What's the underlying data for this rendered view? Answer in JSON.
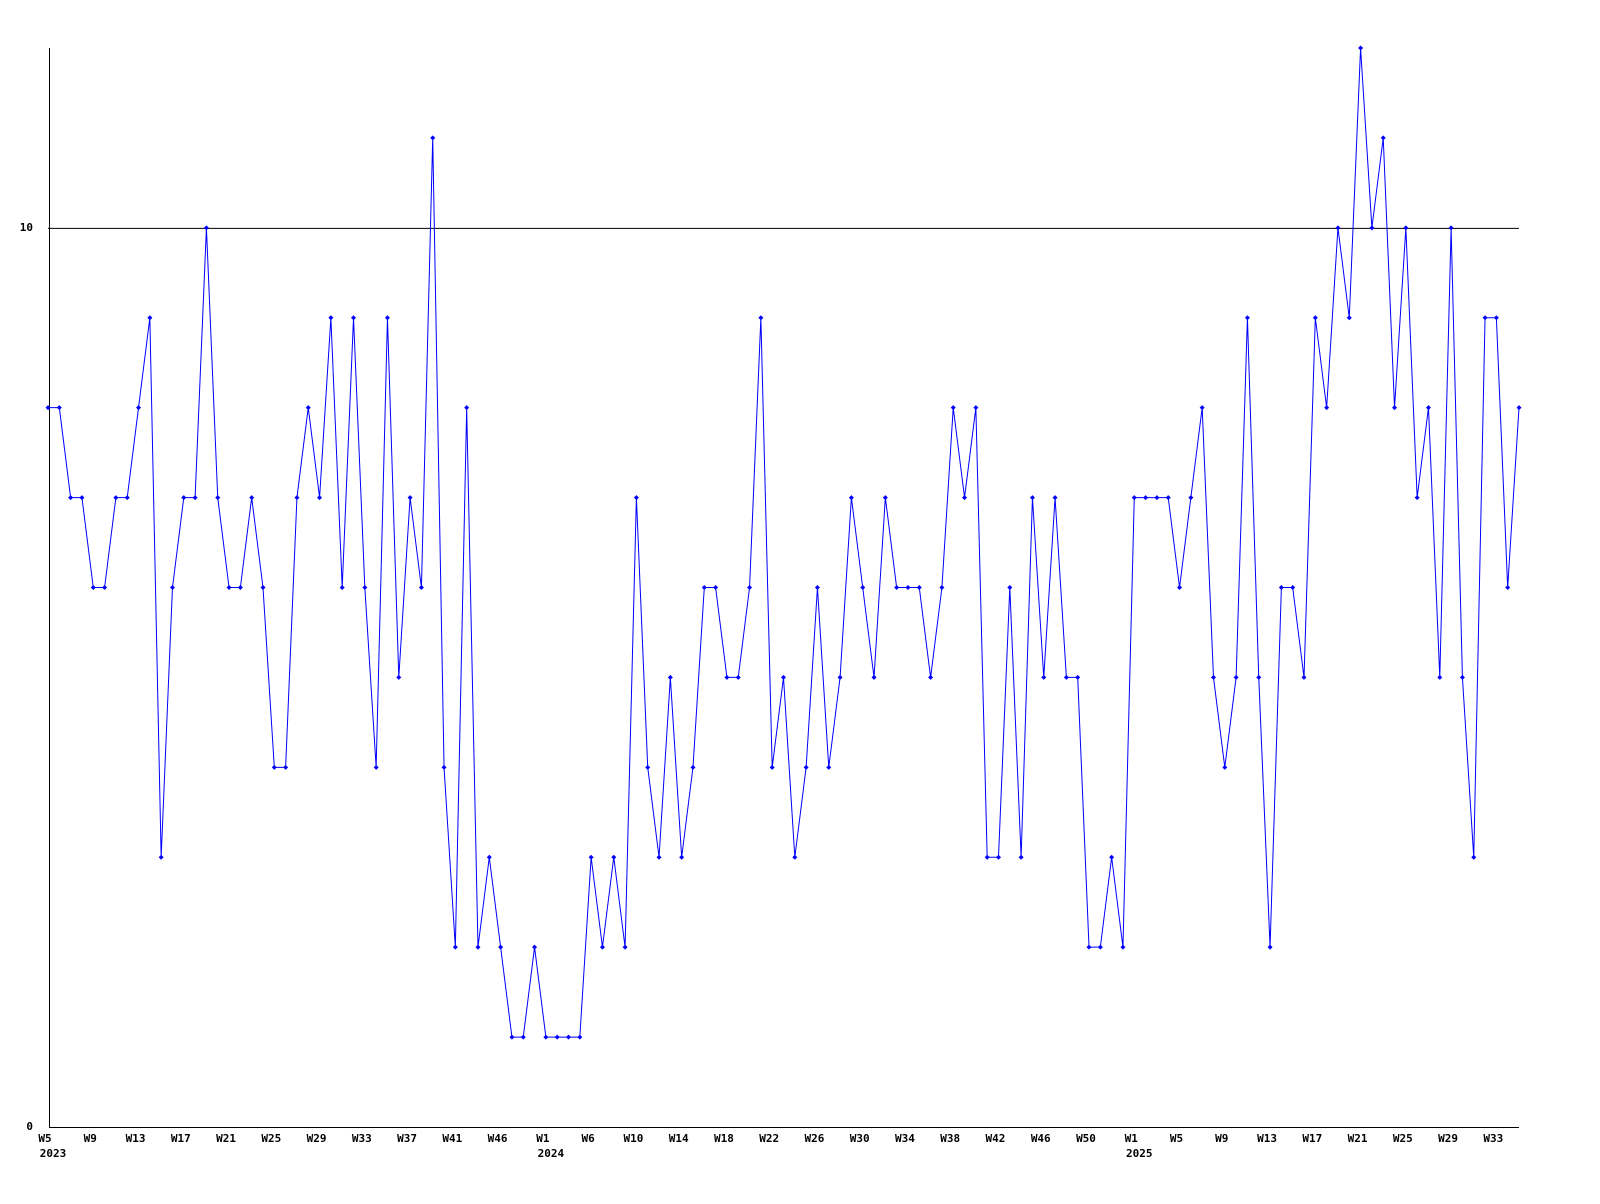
{
  "chart_data": {
    "type": "line",
    "color": "#0000ff",
    "categories": [
      "W5",
      null,
      null,
      null,
      "W9",
      null,
      null,
      null,
      "W13",
      null,
      null,
      null,
      "W17",
      null,
      null,
      null,
      "W21",
      null,
      null,
      null,
      "W25",
      null,
      null,
      null,
      "W29",
      null,
      null,
      null,
      "W33",
      null,
      null,
      null,
      "W37",
      null,
      null,
      null,
      "W41",
      null,
      null,
      null,
      "W46",
      null,
      null,
      null,
      "W1",
      null,
      null,
      null,
      "W6",
      null,
      null,
      null,
      "W10",
      null,
      null,
      null,
      "W14",
      null,
      null,
      null,
      "W18",
      null,
      null,
      null,
      "W22",
      null,
      null,
      null,
      "W26",
      null,
      null,
      null,
      "W30",
      null,
      null,
      null,
      "W34",
      null,
      null,
      null,
      "W38",
      null,
      null,
      null,
      "W42",
      null,
      null,
      null,
      "W46",
      null,
      null,
      null,
      "W50",
      null,
      null,
      null,
      "W1",
      null,
      null,
      null,
      "W5",
      null,
      null,
      null,
      "W9",
      null,
      null,
      null,
      "W13",
      null,
      null,
      null,
      "W17",
      null,
      null,
      null,
      "W21",
      null,
      null,
      null,
      "W25",
      null,
      null,
      null,
      "W29",
      null,
      null,
      null,
      "W33",
      null,
      null
    ],
    "category_years": [
      "2023",
      null,
      null,
      null,
      null,
      null,
      null,
      null,
      null,
      null,
      null,
      null,
      null,
      null,
      null,
      null,
      null,
      null,
      null,
      null,
      null,
      null,
      null,
      null,
      null,
      null,
      null,
      null,
      null,
      null,
      null,
      null,
      null,
      null,
      null,
      null,
      null,
      null,
      null,
      null,
      null,
      null,
      null,
      null,
      "2024",
      null,
      null,
      null,
      null,
      null,
      null,
      null,
      null,
      null,
      null,
      null,
      null,
      null,
      null,
      null,
      null,
      null,
      null,
      null,
      null,
      null,
      null,
      null,
      null,
      null,
      null,
      null,
      null,
      null,
      null,
      null,
      null,
      null,
      null,
      null,
      null,
      null,
      null,
      null,
      null,
      null,
      null,
      null,
      null,
      null,
      null,
      null,
      null,
      null,
      null,
      null,
      "2025",
      null,
      null,
      null,
      null,
      null,
      null,
      null,
      null,
      null,
      null,
      null,
      null,
      null,
      null,
      null,
      null,
      null,
      null,
      null,
      null,
      null,
      null,
      null,
      null,
      null,
      null,
      null,
      null,
      null,
      null,
      null,
      null,
      null,
      null
    ],
    "values": [
      8,
      8,
      7,
      7,
      6,
      6,
      7,
      7,
      8,
      9,
      3,
      6,
      7,
      7,
      10,
      7,
      6,
      6,
      7,
      6,
      4,
      4,
      7,
      8,
      7,
      9,
      6,
      9,
      6,
      4,
      9,
      5,
      7,
      6,
      11,
      4,
      2,
      8,
      2,
      3,
      2,
      1,
      1,
      2,
      1,
      1,
      1,
      1,
      3,
      2,
      3,
      2,
      7,
      4,
      3,
      5,
      3,
      4,
      6,
      6,
      5,
      5,
      6,
      9,
      4,
      5,
      3,
      4,
      6,
      4,
      5,
      7,
      6,
      5,
      7,
      6,
      6,
      6,
      5,
      6,
      8,
      7,
      8,
      3,
      3,
      6,
      3,
      7,
      5,
      7,
      5,
      5,
      2,
      2,
      3,
      2,
      7,
      7,
      7,
      7,
      6,
      7,
      8,
      5,
      4,
      5,
      9,
      5,
      2,
      6,
      6,
      5,
      9,
      8,
      10,
      9,
      12,
      10,
      11,
      8,
      10,
      7,
      8,
      5,
      10,
      5,
      3,
      9,
      9,
      6,
      8
    ],
    "ylim": [
      0,
      12
    ],
    "yticks": [
      0,
      10
    ],
    "grid": true
  }
}
